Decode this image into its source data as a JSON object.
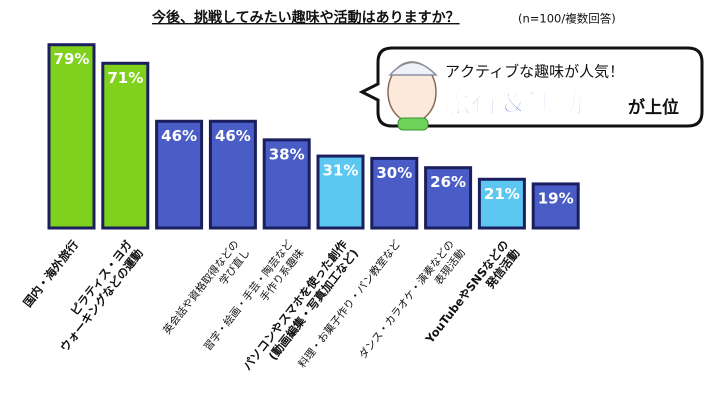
{
  "chart_data": {
    "type": "bar",
    "title": "今後、挑戦してみたい趣味や活動はありますか？",
    "subtitle": "(n=100/複数回答)",
    "categories": [
      [
        "国内・海外旅行"
      ],
      [
        "ピラティス・ヨガ",
        "ウォーキングなどの運動"
      ],
      null,
      [
        "英会話や資格取得などの",
        "学び直し"
      ],
      [
        "習字・絵画・手芸・陶芸など",
        "手作り系趣味"
      ],
      [
        "パソコンやスマホを使った創作",
        "(動画編集・写真加工など)"
      ],
      [
        "料理・お菓子作り・パン教室など"
      ],
      [
        "ダンス・カラオケ・演奏などの",
        "表現活動"
      ],
      [
        "YouTubeやSNSなどの",
        "発信活動"
      ],
      null
    ],
    "values": [
      79,
      71,
      46,
      46,
      38,
      31,
      30,
      26,
      21,
      19
    ],
    "value_labels": [
      "79%",
      "71%",
      "46%",
      "46%",
      "38%",
      "31%",
      "30%",
      "26%",
      "21%",
      "19%"
    ],
    "colors": [
      "#7fd11b",
      "#7fd11b",
      "#4a5cc6",
      "#4a5cc6",
      "#4a5cc6",
      "#5cc8f2",
      "#4a5cc6",
      "#4a5cc6",
      "#5cc8f2",
      "#4a5cc6"
    ],
    "annotations": [
      "アクティブな趣味が人気！",
      "旅行＆運動",
      "が上位"
    ]
  }
}
